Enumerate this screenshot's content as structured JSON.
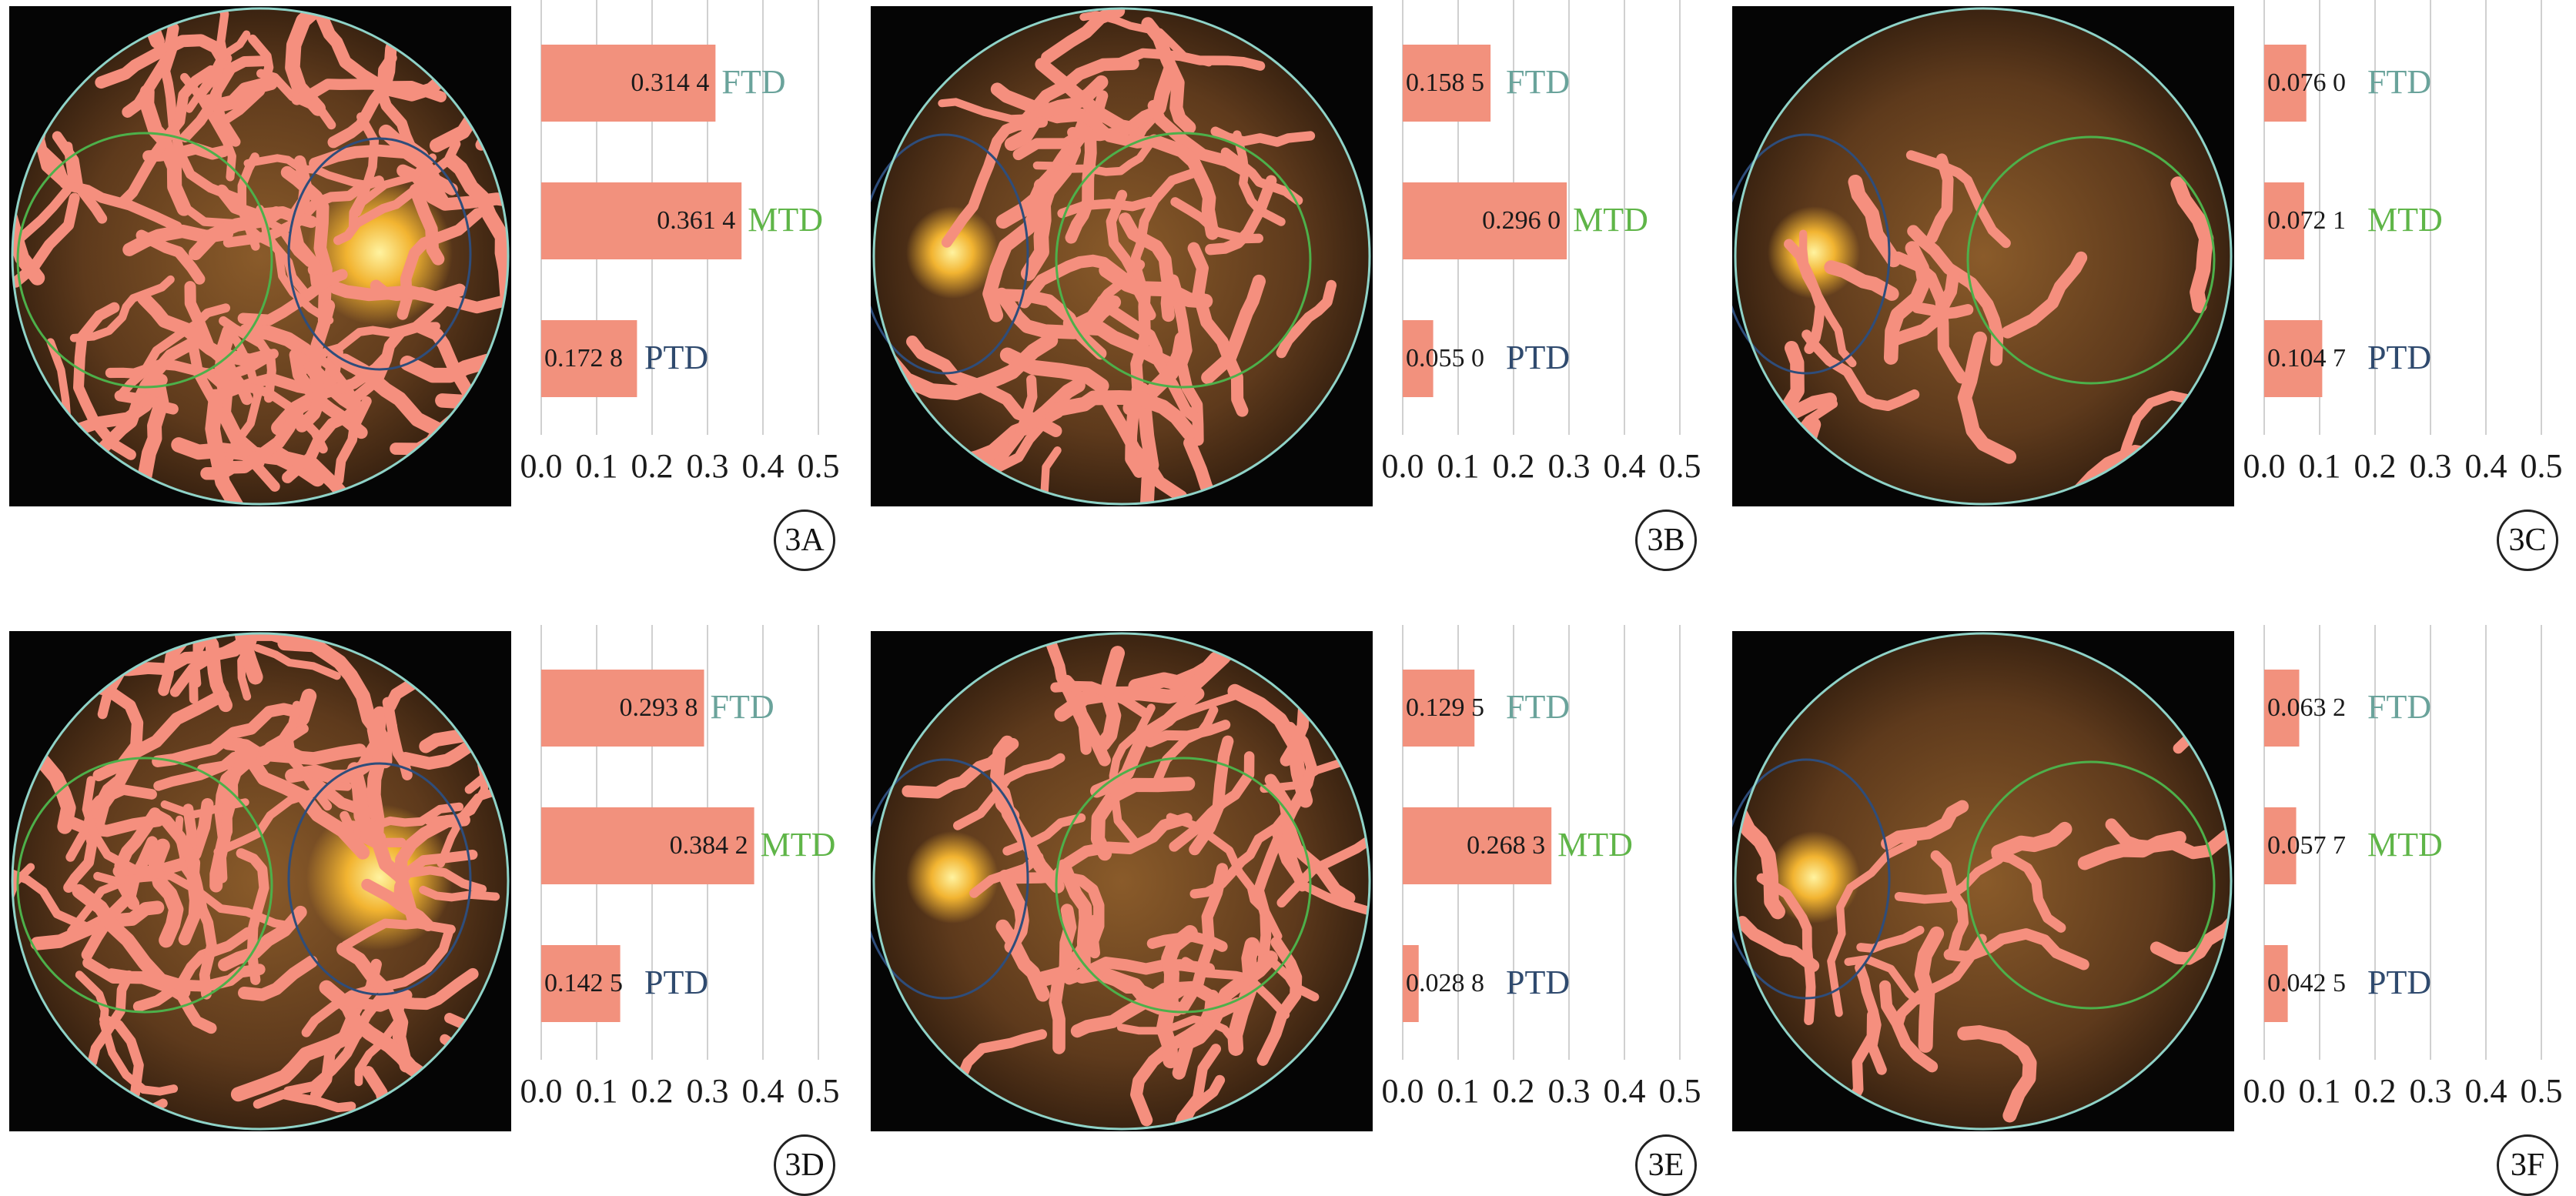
{
  "colors": {
    "bar": "#f2917d",
    "grid": "#d0d0d0",
    "ftd": "#6aa39b",
    "mtd": "#5fb548",
    "ptd": "#2f4a6e",
    "vessel": "#f58f7e",
    "optic_ring": "#2e4d7b",
    "macula_ring": "#4db04a",
    "fundus_edge": "#8fd3c8"
  },
  "panels": [
    {
      "label": "3A",
      "optic_disc_side": "right"
    },
    {
      "label": "3B",
      "optic_disc_side": "left"
    },
    {
      "label": "3C",
      "optic_disc_side": "left"
    },
    {
      "label": "3D",
      "optic_disc_side": "right"
    },
    {
      "label": "3E",
      "optic_disc_side": "left"
    },
    {
      "label": "3F",
      "optic_disc_side": "left"
    }
  ],
  "chart_data": [
    {
      "type": "bar",
      "orientation": "horizontal",
      "categories": [
        "FTD",
        "MTD",
        "PTD"
      ],
      "values": [
        0.3144,
        0.3614,
        0.1728
      ],
      "value_labels": [
        "0.314 4",
        "0.361 4",
        "0.172 8"
      ],
      "xlim": [
        0,
        0.5
      ],
      "x_ticks": [
        "0.0",
        "0.1",
        "0.2",
        "0.3",
        "0.4",
        "0.5"
      ],
      "grid": true
    },
    {
      "type": "bar",
      "orientation": "horizontal",
      "categories": [
        "FTD",
        "MTD",
        "PTD"
      ],
      "values": [
        0.1585,
        0.296,
        0.055
      ],
      "value_labels": [
        "0.158 5",
        "0.296 0",
        "0.055 0"
      ],
      "xlim": [
        0,
        0.5
      ],
      "x_ticks": [
        "0.0",
        "0.1",
        "0.2",
        "0.3",
        "0.4",
        "0.5"
      ],
      "grid": true
    },
    {
      "type": "bar",
      "orientation": "horizontal",
      "categories": [
        "FTD",
        "MTD",
        "PTD"
      ],
      "values": [
        0.076,
        0.0721,
        0.1047
      ],
      "value_labels": [
        "0.076 0",
        "0.072 1",
        "0.104 7"
      ],
      "xlim": [
        0,
        0.5
      ],
      "x_ticks": [
        "0.0",
        "0.1",
        "0.2",
        "0.3",
        "0.4",
        "0.5"
      ],
      "grid": true
    },
    {
      "type": "bar",
      "orientation": "horizontal",
      "categories": [
        "FTD",
        "MTD",
        "PTD"
      ],
      "values": [
        0.2938,
        0.3842,
        0.1425
      ],
      "value_labels": [
        "0.293 8",
        "0.384 2",
        "0.142 5"
      ],
      "xlim": [
        0,
        0.5
      ],
      "x_ticks": [
        "0.0",
        "0.1",
        "0.2",
        "0.3",
        "0.4",
        "0.5"
      ],
      "grid": true
    },
    {
      "type": "bar",
      "orientation": "horizontal",
      "categories": [
        "FTD",
        "MTD",
        "PTD"
      ],
      "values": [
        0.1295,
        0.2683,
        0.0288
      ],
      "value_labels": [
        "0.129 5",
        "0.268 3",
        "0.028 8"
      ],
      "xlim": [
        0,
        0.5
      ],
      "x_ticks": [
        "0.0",
        "0.1",
        "0.2",
        "0.3",
        "0.4",
        "0.5"
      ],
      "grid": true
    },
    {
      "type": "bar",
      "orientation": "horizontal",
      "categories": [
        "FTD",
        "MTD",
        "PTD"
      ],
      "values": [
        0.0632,
        0.0577,
        0.0425
      ],
      "value_labels": [
        "0.063 2",
        "0.057 7",
        "0.042 5"
      ],
      "xlim": [
        0,
        0.5
      ],
      "x_ticks": [
        "0.0",
        "0.1",
        "0.2",
        "0.3",
        "0.4",
        "0.5"
      ],
      "grid": true
    }
  ]
}
